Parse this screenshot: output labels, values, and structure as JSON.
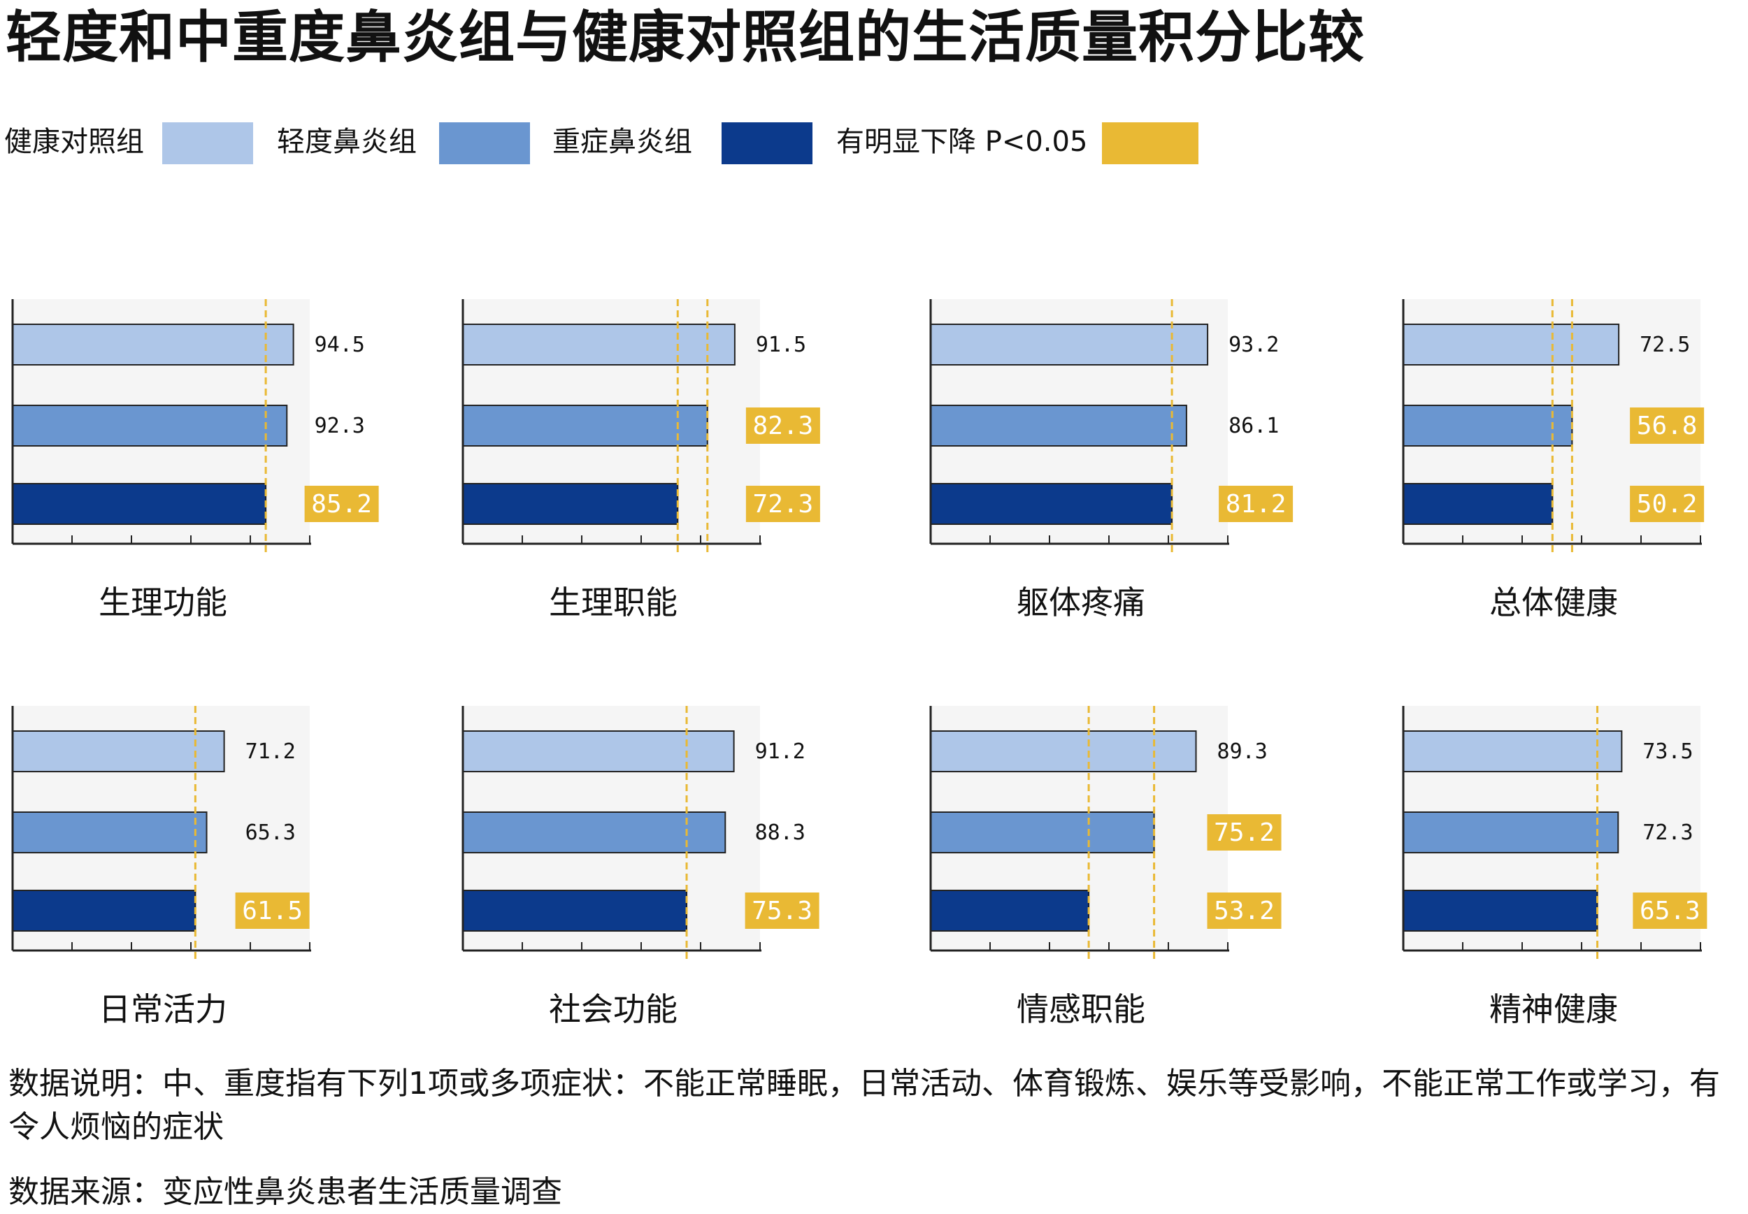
{
  "title": "轻度和中重度鼻炎组与健康对照组的生活质量积分比较",
  "legend": [
    {
      "label": "健康对照组",
      "color": "#aec6e8"
    },
    {
      "label": "轻度鼻炎组",
      "color": "#6a96d0"
    },
    {
      "label": "重症鼻炎组",
      "color": "#0c3a8c"
    },
    {
      "label": "有明显下降 P<0.05",
      "color": "#e9b934"
    }
  ],
  "note": "数据说明：中、重度指有下列1项或多项症状：不能正常睡眠，日常活动、体育锻炼、娱乐等受影响，不能正常工作或学习，有令人烦恼的症状",
  "source": "数据来源：变应性鼻炎患者生活质量调查",
  "chart_data": [
    {
      "type": "bar",
      "title": "生理功能",
      "series": [
        "健康对照组",
        "轻度鼻炎组",
        "重症鼻炎组"
      ],
      "values": [
        94.5,
        92.3,
        85.2
      ],
      "labels": [
        "94.5",
        "92.3",
        "85.2"
      ],
      "significant": [
        false,
        false,
        true
      ],
      "xlim": [
        0,
        100
      ]
    },
    {
      "type": "bar",
      "title": "生理职能",
      "series": [
        "健康对照组",
        "轻度鼻炎组",
        "重症鼻炎组"
      ],
      "values": [
        91.5,
        82.3,
        72.3
      ],
      "labels": [
        "91.5",
        "82.3",
        "72.3"
      ],
      "significant": [
        false,
        true,
        true
      ],
      "xlim": [
        0,
        100
      ]
    },
    {
      "type": "bar",
      "title": "躯体疼痛",
      "series": [
        "健康对照组",
        "轻度鼻炎组",
        "重症鼻炎组"
      ],
      "values": [
        93.2,
        86.1,
        81.2
      ],
      "labels": [
        "93.2",
        "86.1",
        "81.2"
      ],
      "significant": [
        false,
        false,
        true
      ],
      "xlim": [
        0,
        100
      ]
    },
    {
      "type": "bar",
      "title": "总体健康",
      "series": [
        "健康对照组",
        "轻度鼻炎组",
        "重症鼻炎组"
      ],
      "values": [
        72.5,
        56.8,
        50.2
      ],
      "labels": [
        "72.5",
        "56.8",
        "50.2"
      ],
      "significant": [
        false,
        true,
        true
      ],
      "xlim": [
        0,
        80
      ]
    },
    {
      "type": "bar",
      "title": "日常活力",
      "series": [
        "健康对照组",
        "轻度鼻炎组",
        "重症鼻炎组"
      ],
      "values": [
        71.2,
        65.3,
        61.5
      ],
      "labels": [
        "71.2",
        "65.3",
        "61.5"
      ],
      "significant": [
        false,
        false,
        true
      ],
      "xlim": [
        0,
        80
      ]
    },
    {
      "type": "bar",
      "title": "社会功能",
      "series": [
        "健康对照组",
        "轻度鼻炎组",
        "重症鼻炎组"
      ],
      "values": [
        91.2,
        88.3,
        75.3
      ],
      "labels": [
        "91.2",
        "88.3",
        "75.3"
      ],
      "significant": [
        false,
        false,
        true
      ],
      "xlim": [
        0,
        100
      ]
    },
    {
      "type": "bar",
      "title": "情感职能",
      "series": [
        "健康对照组",
        "轻度鼻炎组",
        "重症鼻炎组"
      ],
      "values": [
        89.3,
        75.2,
        53.2
      ],
      "labels": [
        "89.3",
        "75.2",
        "53.2"
      ],
      "significant": [
        false,
        true,
        true
      ],
      "xlim": [
        0,
        100
      ]
    },
    {
      "type": "bar",
      "title": "精神健康",
      "series": [
        "健康对照组",
        "轻度鼻炎组",
        "重症鼻炎组"
      ],
      "values": [
        73.5,
        72.3,
        65.3
      ],
      "labels": [
        "73.5",
        "72.3",
        "65.3"
      ],
      "significant": [
        false,
        false,
        true
      ],
      "xlim": [
        0,
        80
      ]
    }
  ]
}
